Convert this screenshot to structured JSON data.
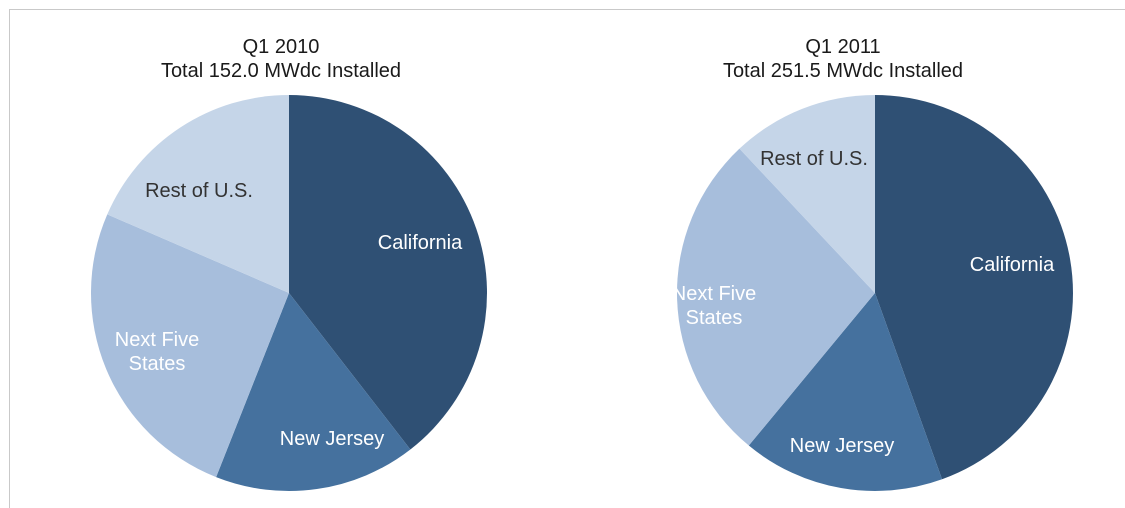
{
  "chart_data": [
    {
      "type": "pie",
      "title": "Q1 2010",
      "subtitle": "Total 152.0 MWdc Installed",
      "slices": [
        {
          "label": "California",
          "value": 39.5,
          "color": "#2f5074",
          "label_color": "#ffffff"
        },
        {
          "label": "New Jersey",
          "value": 16.5,
          "color": "#45719e",
          "label_color": "#ffffff"
        },
        {
          "label": "Next Five States",
          "label_lines": [
            "Next Five",
            "States"
          ],
          "value": 25.5,
          "color": "#a7bedc",
          "label_color": "#ffffff"
        },
        {
          "label": "Rest of U.S.",
          "value": 18.5,
          "color": "#c5d5e8",
          "label_color": "#333333"
        }
      ]
    },
    {
      "type": "pie",
      "title": "Q1 2011",
      "subtitle": "Total 251.5 MWdc Installed",
      "slices": [
        {
          "label": "California",
          "value": 44.5,
          "color": "#2f5074",
          "label_color": "#ffffff"
        },
        {
          "label": "New Jersey",
          "value": 16.5,
          "color": "#45719e",
          "label_color": "#ffffff"
        },
        {
          "label": "Next Five States",
          "label_lines": [
            "Next Five",
            "States"
          ],
          "value": 27,
          "color": "#a7bedc",
          "label_color": "#ffffff"
        },
        {
          "label": "Rest of U.S.",
          "value": 12,
          "color": "#c5d5e8",
          "label_color": "#333333"
        }
      ]
    }
  ]
}
